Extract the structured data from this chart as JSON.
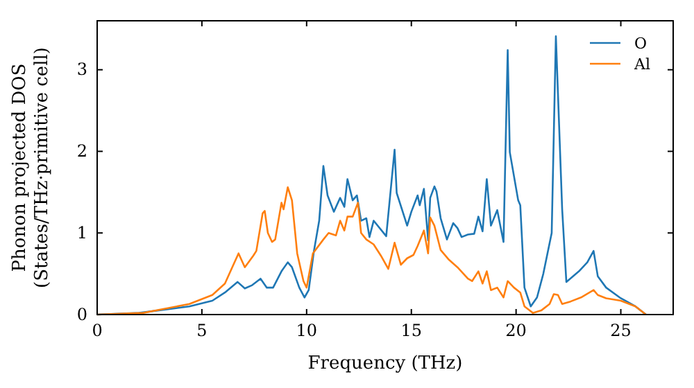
{
  "chart_data": {
    "type": "line",
    "xlabel": "Frequency (THz)",
    "ylabel": "Phonon projected DOS\n(States/THz·primitive cell)",
    "xlim": [
      0,
      27.5
    ],
    "ylim": [
      0,
      3.6
    ],
    "xticks": [
      0,
      5,
      10,
      15,
      20,
      25
    ],
    "yticks": [
      0,
      1,
      2,
      3
    ],
    "grid": false,
    "legend": "top right",
    "series": [
      {
        "name": "O",
        "color": "#1f77b4",
        "x": [
          0,
          2,
          4.4,
          5.5,
          6.1,
          6.7,
          7.05,
          7.4,
          7.8,
          8.1,
          8.4,
          8.8,
          9.1,
          9.3,
          9.65,
          9.9,
          10.1,
          10.35,
          10.6,
          10.8,
          11.0,
          11.3,
          11.6,
          11.8,
          11.95,
          12.2,
          12.4,
          12.6,
          12.85,
          13.0,
          13.2,
          13.8,
          14.2,
          14.3,
          14.8,
          15.0,
          15.3,
          15.4,
          15.6,
          15.8,
          15.9,
          16.1,
          16.2,
          16.4,
          16.7,
          17.0,
          17.2,
          17.4,
          17.7,
          18.0,
          18.2,
          18.4,
          18.6,
          18.8,
          19.1,
          19.4,
          19.6,
          19.7,
          20.1,
          20.2,
          20.4,
          20.7,
          21.0,
          21.3,
          21.7,
          21.9,
          22.2,
          22.4,
          23.0,
          23.4,
          23.7,
          23.9,
          24.3,
          25.0,
          25.7,
          26.2
        ],
        "values": [
          0,
          0.02,
          0.1,
          0.17,
          0.27,
          0.4,
          0.32,
          0.36,
          0.44,
          0.33,
          0.33,
          0.53,
          0.64,
          0.58,
          0.33,
          0.21,
          0.3,
          0.78,
          1.15,
          1.82,
          1.46,
          1.26,
          1.43,
          1.32,
          1.66,
          1.4,
          1.46,
          1.15,
          1.18,
          0.95,
          1.15,
          0.96,
          2.02,
          1.49,
          1.09,
          1.26,
          1.46,
          1.34,
          1.54,
          0.91,
          1.43,
          1.57,
          1.51,
          1.18,
          0.92,
          1.12,
          1.06,
          0.95,
          0.98,
          0.99,
          1.2,
          1.02,
          1.66,
          1.09,
          1.28,
          0.89,
          3.24,
          1.99,
          1.4,
          1.34,
          0.33,
          0.1,
          0.21,
          0.5,
          1.0,
          3.41,
          1.29,
          0.4,
          0.53,
          0.64,
          0.78,
          0.47,
          0.33,
          0.2,
          0.1,
          0
        ]
      },
      {
        "name": "Al",
        "color": "#ff7f0e",
        "x": [
          0,
          2.2,
          4.4,
          5.5,
          6.1,
          6.45,
          6.75,
          7.05,
          7.45,
          7.6,
          7.9,
          8.0,
          8.15,
          8.35,
          8.5,
          8.8,
          8.9,
          9.1,
          9.3,
          9.55,
          9.85,
          10.0,
          10.3,
          10.8,
          11.05,
          11.4,
          11.6,
          11.8,
          11.95,
          12.2,
          12.45,
          12.6,
          12.85,
          13.2,
          13.55,
          13.9,
          14.2,
          14.5,
          14.8,
          15.1,
          15.3,
          15.6,
          15.8,
          15.9,
          16.1,
          16.4,
          16.8,
          17.2,
          17.7,
          17.9,
          18.2,
          18.4,
          18.6,
          18.8,
          19.1,
          19.4,
          19.6,
          19.9,
          20.2,
          20.4,
          20.8,
          21.2,
          21.6,
          21.8,
          22.0,
          22.2,
          22.6,
          23.1,
          23.7,
          23.9,
          24.3,
          25.0,
          25.7,
          26.2
        ],
        "values": [
          0,
          0.02,
          0.13,
          0.24,
          0.38,
          0.58,
          0.75,
          0.58,
          0.72,
          0.78,
          1.24,
          1.27,
          1.0,
          0.89,
          0.92,
          1.37,
          1.29,
          1.56,
          1.4,
          0.75,
          0.41,
          0.33,
          0.75,
          0.92,
          1.0,
          0.97,
          1.15,
          1.03,
          1.2,
          1.2,
          1.37,
          1.0,
          0.92,
          0.86,
          0.72,
          0.56,
          0.88,
          0.61,
          0.69,
          0.73,
          0.84,
          1.03,
          0.75,
          1.19,
          1.09,
          0.79,
          0.67,
          0.58,
          0.44,
          0.41,
          0.53,
          0.38,
          0.53,
          0.3,
          0.33,
          0.21,
          0.41,
          0.33,
          0.27,
          0.1,
          0.02,
          0.05,
          0.13,
          0.25,
          0.24,
          0.13,
          0.16,
          0.21,
          0.3,
          0.24,
          0.2,
          0.17,
          0.1,
          0
        ]
      }
    ]
  }
}
